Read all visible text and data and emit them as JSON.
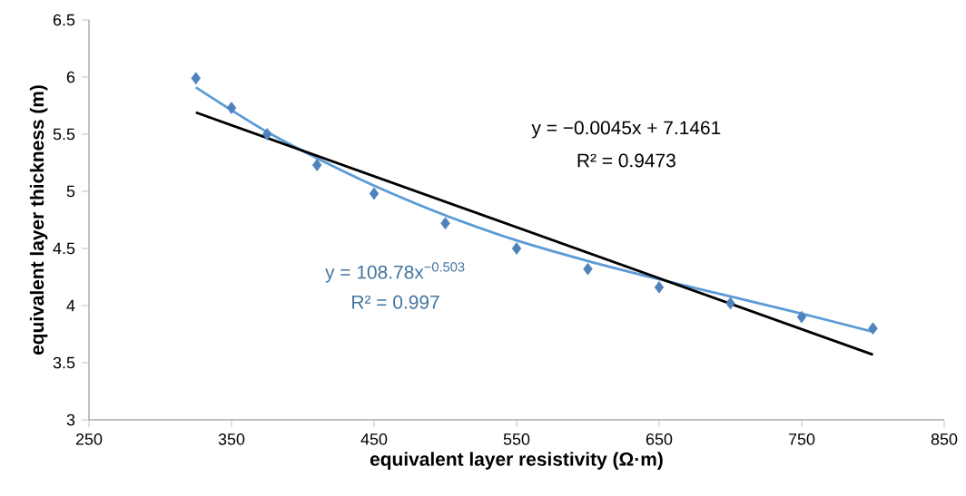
{
  "chart_data": {
    "type": "scatter",
    "xlabel": "equivalent layer resistivity (Ω·m)",
    "ylabel": "equivalent layer thickness (m)",
    "xlim": [
      250,
      850
    ],
    "xticks": [
      250,
      350,
      450,
      550,
      650,
      750,
      850
    ],
    "ylim": [
      3,
      6.5
    ],
    "yticks": [
      3,
      3.5,
      4,
      4.5,
      5,
      5.5,
      6,
      6.5
    ],
    "series": [
      {
        "marker": "diamond",
        "color": "#4f81bd",
        "x": [
          325,
          350,
          375,
          410,
          450,
          500,
          550,
          600,
          650,
          700,
          750,
          800
        ],
        "values": [
          5.99,
          5.73,
          5.5,
          5.23,
          4.98,
          4.72,
          4.5,
          4.32,
          4.16,
          4.02,
          3.9,
          3.8
        ]
      },
      {
        "type": "line",
        "marker": "none",
        "color": "#5b9bd5",
        "x": [
          325,
          350,
          375,
          410,
          450,
          500,
          550,
          600,
          650,
          700,
          750,
          800
        ],
        "values": [
          5.91,
          5.71,
          5.52,
          5.29,
          5.05,
          4.79,
          4.57,
          4.39,
          4.23,
          4.08,
          3.93,
          3.77
        ]
      },
      {
        "type": "line",
        "marker": "none",
        "color": "#000000",
        "x": [
          325,
          800
        ],
        "values": [
          5.69,
          3.57
        ]
      }
    ],
    "annotations": [
      "y = −0.0045x + 7.1461",
      "R² = 0.9473",
      "y = 108.78x$^{−0.503}$",
      "R² = 0.997"
    ]
  }
}
